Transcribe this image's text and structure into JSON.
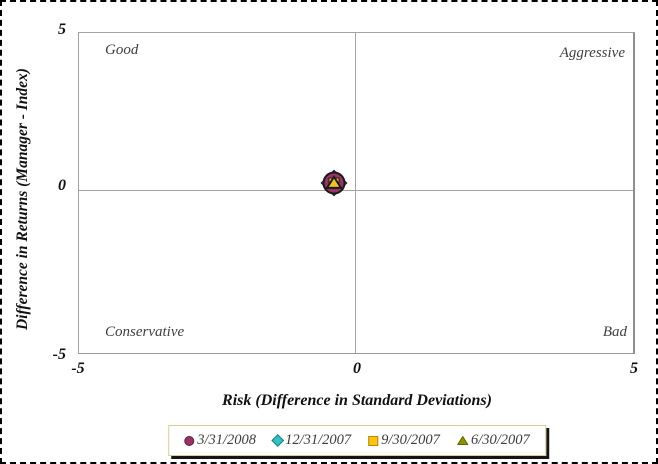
{
  "chart_data": {
    "type": "scatter",
    "title": "",
    "xlabel": "Risk (Difference in Standard Deviations)",
    "ylabel": "Difference in Returns (Manager - Index)",
    "xlim": [
      -5,
      5
    ],
    "ylim": [
      -5,
      5
    ],
    "x_ticks": [
      "-5",
      "0",
      "5"
    ],
    "y_ticks": [
      "5",
      "0",
      "-5"
    ],
    "grid": false,
    "legend_position": "bottom",
    "quadrant_labels": {
      "top_left": "Good",
      "top_right": "Aggressive",
      "bottom_left": "Conservative",
      "bottom_right": "Bad"
    },
    "series": [
      {
        "name": "3/31/2008",
        "marker": "circle",
        "color": "#993366",
        "points": [
          {
            "x": -0.4,
            "y": 0.3
          }
        ]
      },
      {
        "name": "12/31/2007",
        "marker": "diamond",
        "color": "#2EC4C4",
        "points": [
          {
            "x": -0.4,
            "y": 0.3
          }
        ]
      },
      {
        "name": "9/30/2007",
        "marker": "square",
        "color": "#FFC20E",
        "points": [
          {
            "x": -0.4,
            "y": 0.3
          }
        ]
      },
      {
        "name": "6/30/2007",
        "marker": "triangle",
        "color": "#8F9300",
        "points": [
          {
            "x": -0.4,
            "y": 0.3
          }
        ]
      }
    ],
    "colors": {
      "plot_triangle_fill": "#EFC319",
      "marker_outline": "#1a1a1a",
      "axis_line": "#a3a3a3",
      "legend_border": "#d9cc96",
      "legend_shadow": "#151515"
    }
  }
}
